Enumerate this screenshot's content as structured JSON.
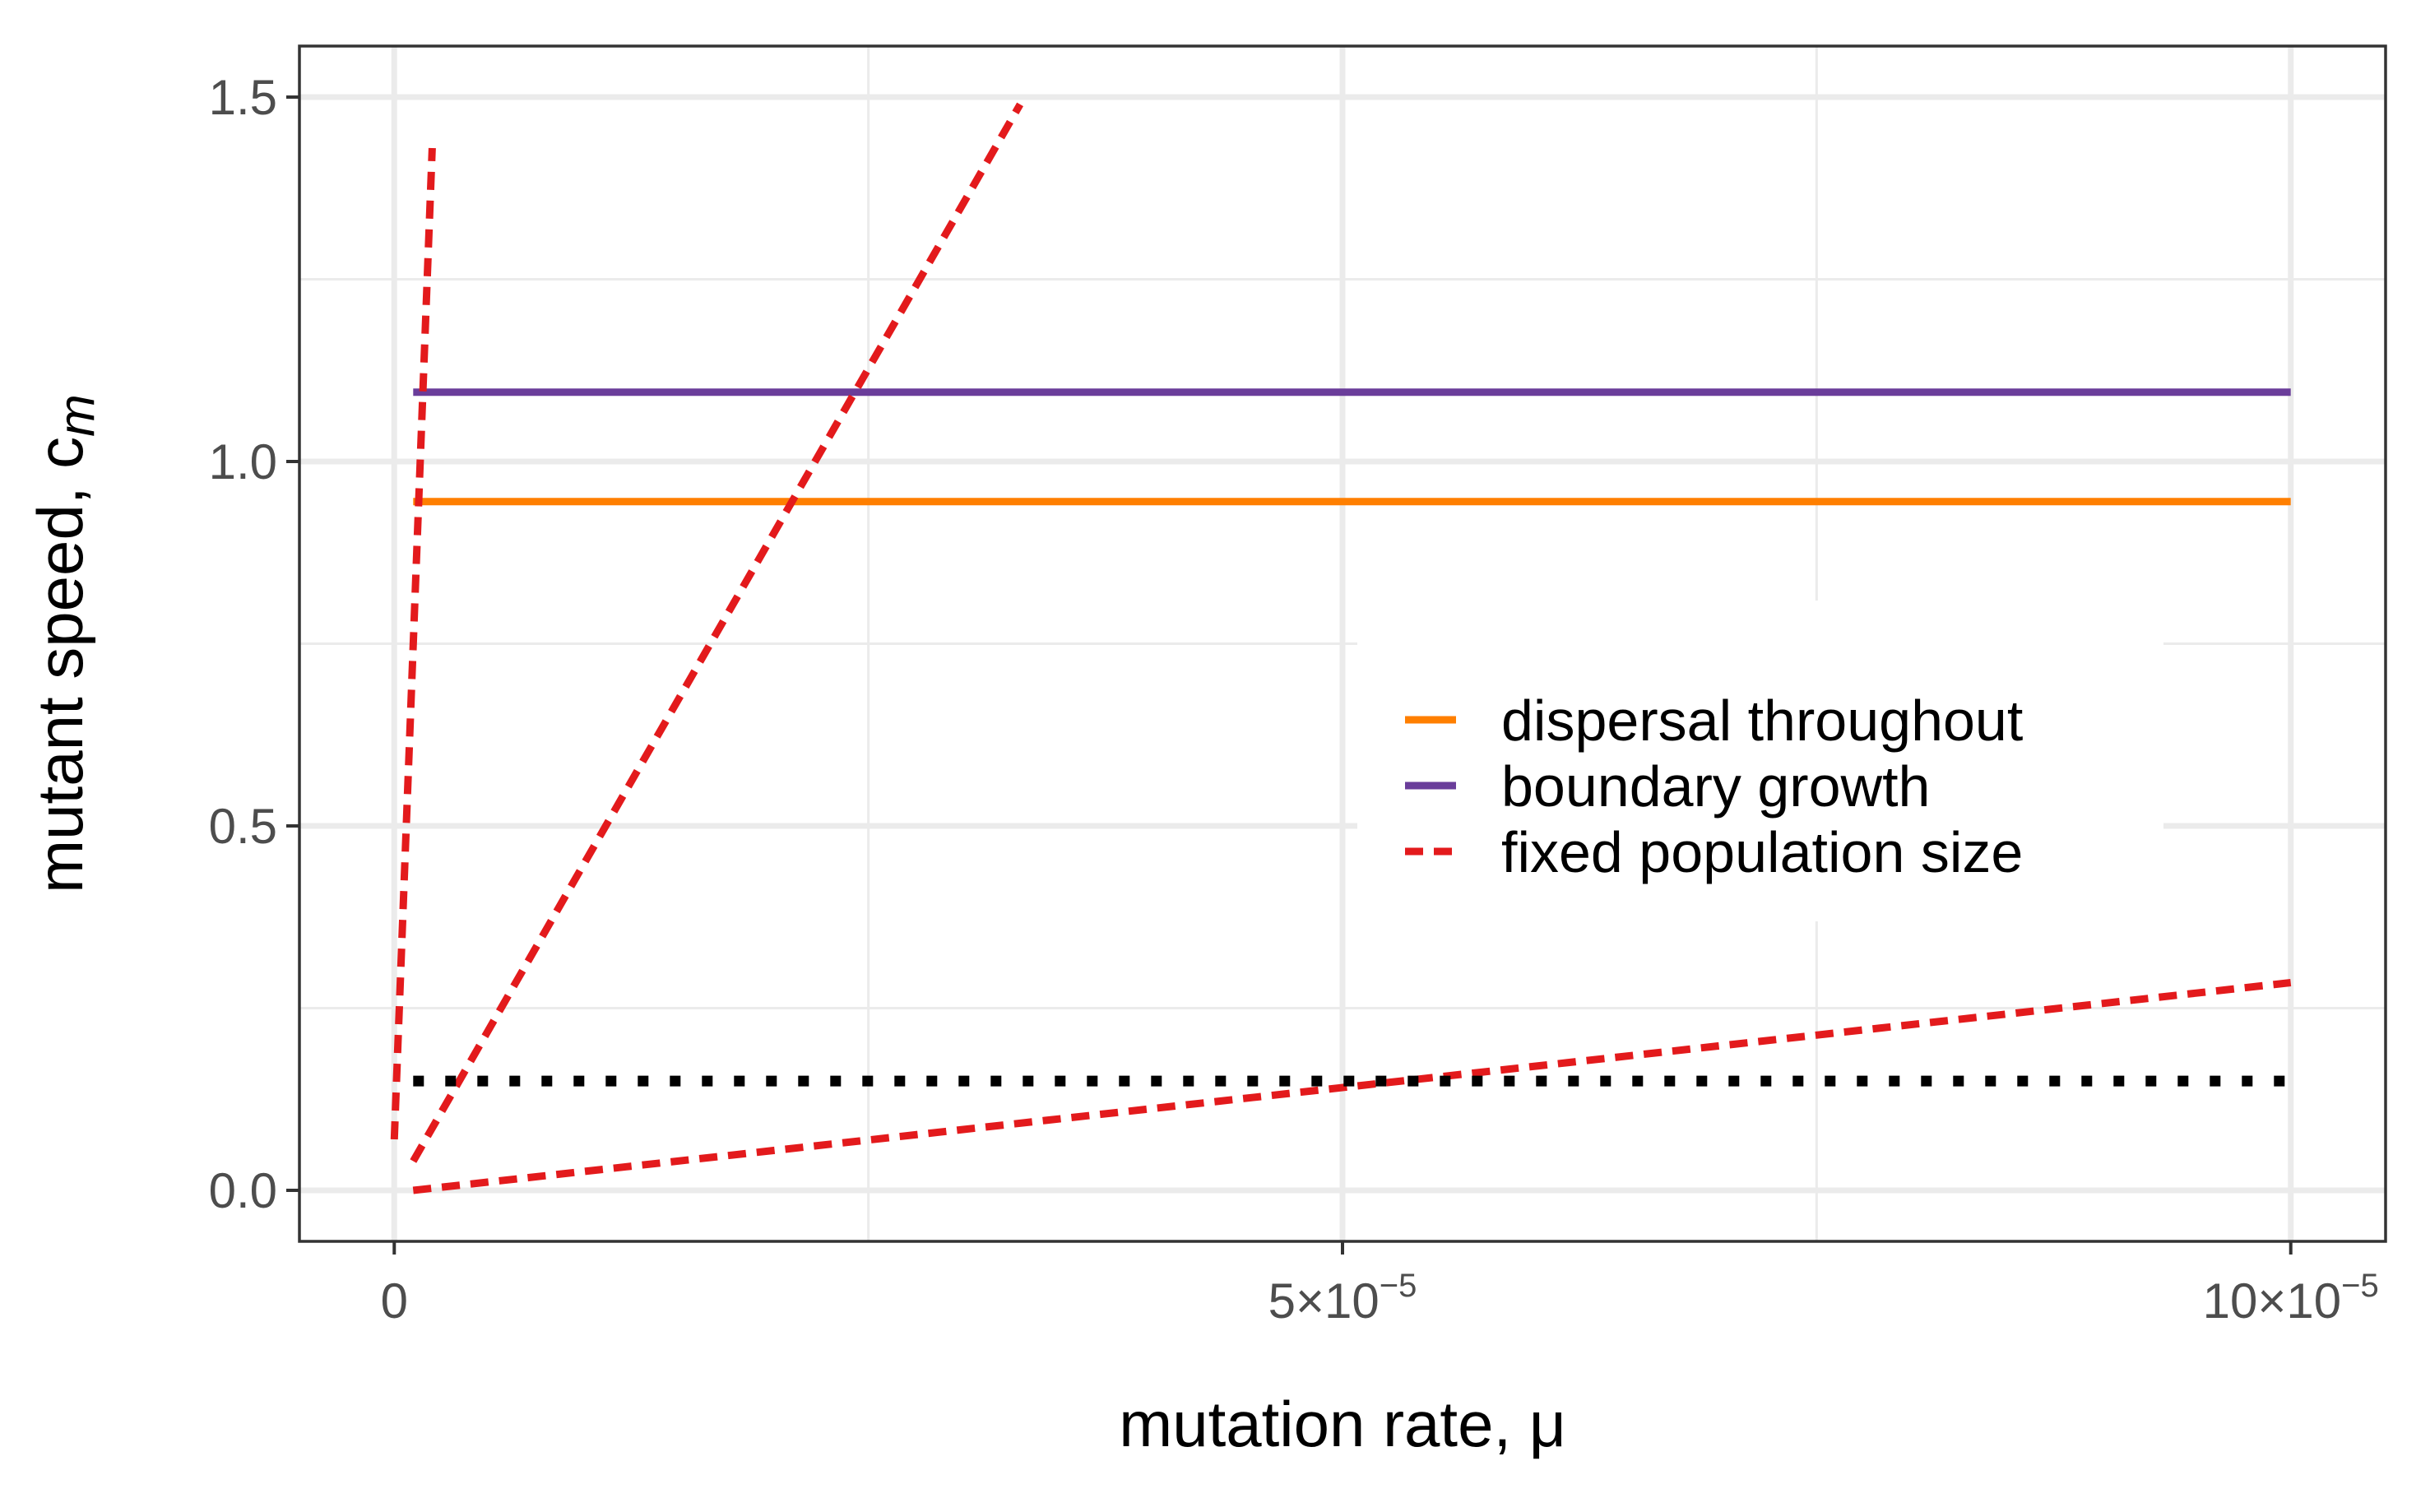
{
  "chart_data": {
    "type": "line",
    "title": "",
    "xlabel": "mutation rate, μ",
    "ylabel": "mutant speed, c",
    "ylabel_subscript": "m",
    "xlim": [
      -5e-06,
      0.000105
    ],
    "ylim": [
      -0.07,
      1.57
    ],
    "x_ticks": [
      {
        "value": 0,
        "label": "0",
        "exponent": ""
      },
      {
        "value": 5e-05,
        "label": "5×10",
        "exponent": "−5"
      },
      {
        "value": 0.0001,
        "label": "10×10",
        "exponent": "−5"
      }
    ],
    "x_minor_ticks": [
      2.5e-05,
      7.5e-05
    ],
    "y_ticks": [
      {
        "value": 0.0,
        "label": "0.0"
      },
      {
        "value": 0.5,
        "label": "0.5"
      },
      {
        "value": 1.0,
        "label": "1.0"
      },
      {
        "value": 1.5,
        "label": "1.5"
      }
    ],
    "y_minor_ticks": [
      0.25,
      0.75,
      1.25
    ],
    "grid": true,
    "legend_position": "center-right",
    "legend": [
      {
        "label": "dispersal throughout",
        "color": "#ff7f00",
        "dash": "solid"
      },
      {
        "label": "boundary growth",
        "color": "#6a3d9a",
        "dash": "solid"
      },
      {
        "label": "fixed population size",
        "color": "#e31a1c",
        "dash": "dashed"
      }
    ],
    "series": [
      {
        "legend_index": 0,
        "color": "#ff7f00",
        "dash": "solid",
        "x": [
          1e-06,
          0.0001
        ],
        "y": [
          0.945,
          0.945
        ]
      },
      {
        "legend_index": 1,
        "color": "#6a3d9a",
        "dash": "solid",
        "x": [
          1e-06,
          0.0001
        ],
        "y": [
          1.095,
          1.095
        ]
      },
      {
        "legend_index": 2,
        "color": "#e31a1c",
        "dash": "dashed",
        "x": [
          0,
          2e-06
        ],
        "y": [
          0.07,
          1.43
        ]
      },
      {
        "legend_index": 2,
        "color": "#e31a1c",
        "dash": "dashed",
        "x": [
          1e-06,
          3.3e-05
        ],
        "y": [
          0.04,
          1.49
        ]
      },
      {
        "legend_index": 2,
        "color": "#e31a1c",
        "dash": "dashed",
        "x": [
          1e-06,
          0.0001
        ],
        "y": [
          0.0,
          0.285
        ]
      },
      {
        "legend_index": null,
        "color": "#000000",
        "dash": "dotted",
        "x": [
          1e-06,
          0.0001
        ],
        "y": [
          0.15,
          0.15
        ]
      }
    ]
  }
}
